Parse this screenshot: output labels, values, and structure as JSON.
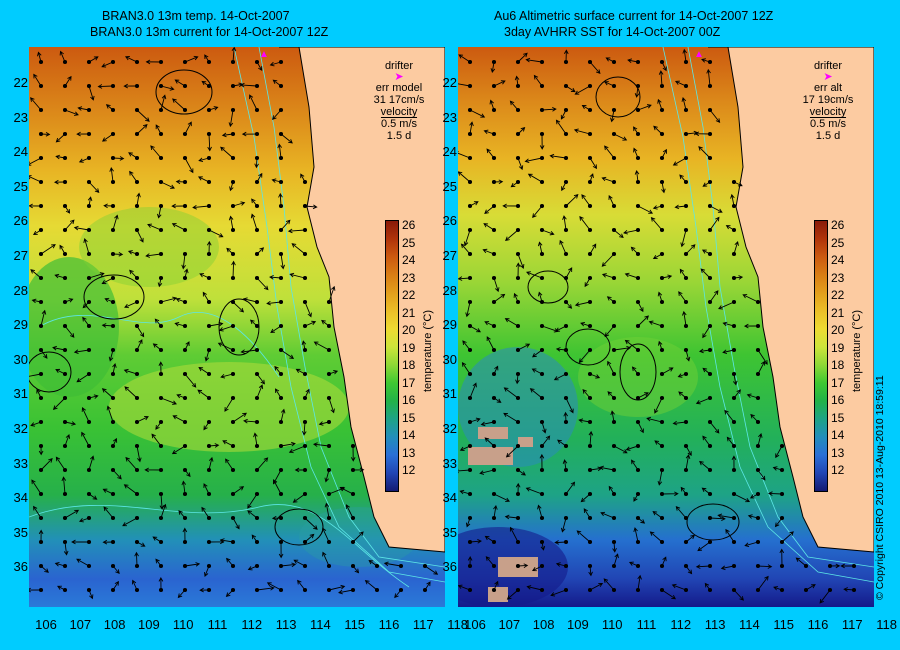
{
  "titles": {
    "left_line1": "BRAN3.0 13m temp. 14-Oct-2007",
    "left_line2": "BRAN3.0 13m current for 14-Oct-2007 12Z",
    "right_line1": "Au6 Altimetric surface current for 14-Oct-2007 12Z",
    "right_line2": "3day AVHRR SST for 14-Oct-2007 00Z"
  },
  "lat_labels": [
    "22",
    "23",
    "24",
    "25",
    "26",
    "27",
    "28",
    "29",
    "30",
    "31",
    "32",
    "33",
    "34",
    "35",
    "36"
  ],
  "lon_labels": [
    "106",
    "107",
    "108",
    "109",
    "110",
    "111",
    "112",
    "113",
    "114",
    "115",
    "116",
    "117",
    "118"
  ],
  "left_legend": {
    "drifter": "drifter",
    "err_label": "err model",
    "err_value": "31 17cm/s",
    "velocity": "velocity",
    "speed": "0.5 m/s",
    "time": "1.5 d"
  },
  "right_legend": {
    "drifter": "drifter",
    "err_label": "err alt",
    "err_value": "17 19cm/s",
    "velocity": "velocity",
    "speed": "0.5 m/s",
    "time": "1.5 d"
  },
  "colorbar": {
    "ticks": [
      "26",
      "25",
      "24",
      "23",
      "22",
      "21",
      "20",
      "19",
      "18",
      "17",
      "16",
      "15",
      "14",
      "13",
      "12"
    ],
    "unit": "temperature (°C)",
    "colors": [
      "#8a1a08",
      "#b0340a",
      "#cc5a10",
      "#d97e14",
      "#e39f1c",
      "#ebbf28",
      "#eedb32",
      "#cde53a",
      "#8ed836",
      "#3fc832",
      "#22b248",
      "#1ea386",
      "#228ebb",
      "#2a6fd6",
      "#2145b4",
      "#141a72"
    ]
  },
  "copyright": "© Copyright CSIRO 2010   13-Aug-2010 18:59:11",
  "colors": {
    "background": "#00ccff",
    "land": "#fccba1",
    "coast": "#000000",
    "isobath": "#5ce6e6",
    "drifter": "#ff00ff"
  }
}
